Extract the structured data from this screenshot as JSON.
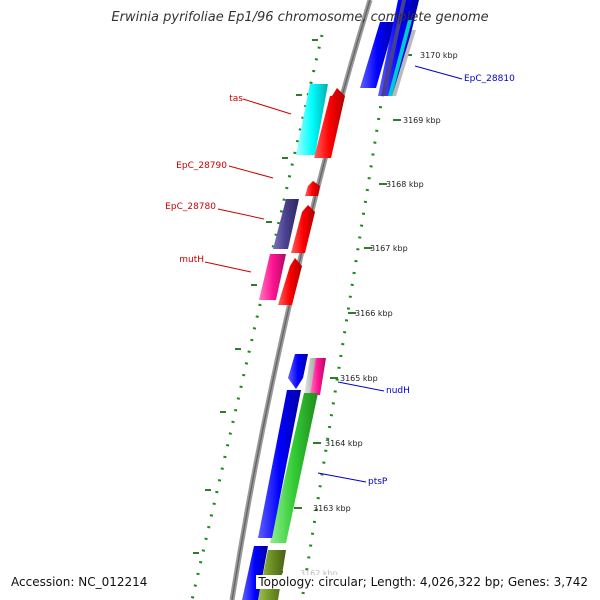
{
  "title": "Erwinia pyrifoliae Ep1/96 chromosome, complete genome",
  "accession": "Accession: NC_012214",
  "topology": "Topology: circular; Length: 4,026,322 bp; Genes: 3,742",
  "scale_labels": [
    "3170 kbp",
    "3169 kbp",
    "3168 kbp",
    "3167 kbp",
    "3166 kbp",
    "3165 kbp",
    "3164 kbp",
    "3163 kbp",
    "3162 kbp"
  ],
  "gene_labels": {
    "tas": "tas",
    "epc_28790": "EpC_28790",
    "epc_28780": "EpC_28780",
    "muth": "mutH",
    "epc_28810": "EpC_28810",
    "nudh": "nudH",
    "ptsp": "ptsP"
  },
  "colors": {
    "forward_label": "#0000cc",
    "reverse_label": "#cc0000",
    "backbone": "#888888",
    "gc_dots": "#1a8a1a",
    "red_cds": "#ff0000",
    "cyan_cds": "#00ffff",
    "slate_cds": "#48408c",
    "magenta_cds": "#ff1493",
    "blue_cds": "#0000ff",
    "green_cds": "#33cc33",
    "olive_cds": "#6b8e23",
    "grey_cds": "#bbbbbb"
  }
}
